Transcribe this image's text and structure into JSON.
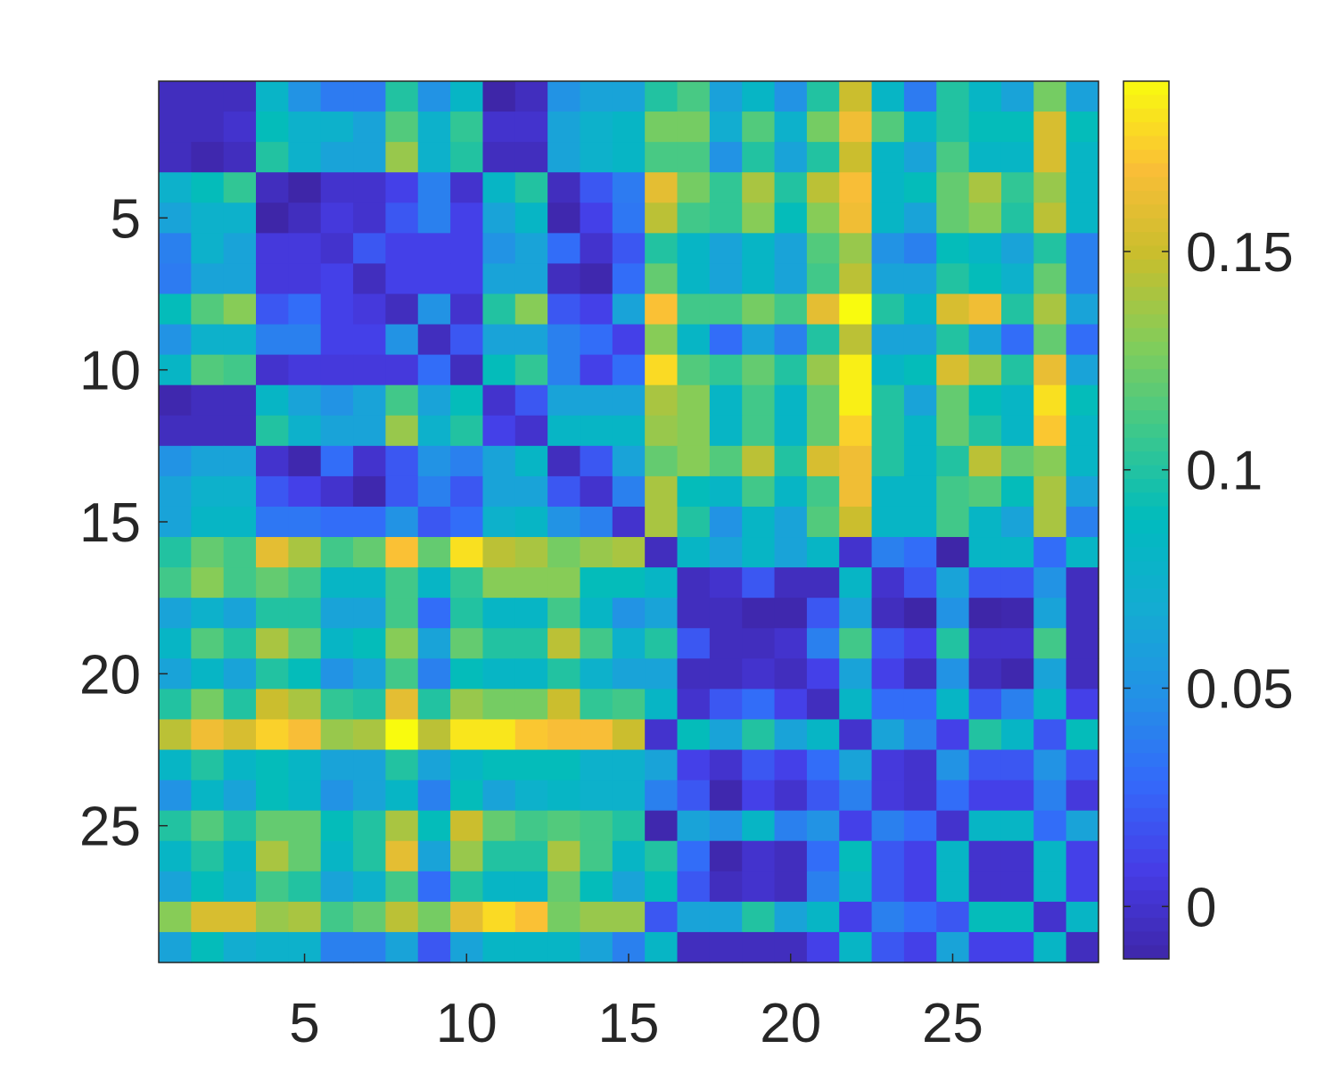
{
  "chart_data": {
    "type": "heatmap",
    "title": "",
    "xlabel": "",
    "ylabel": "",
    "rows": 29,
    "cols": 29,
    "x_ticks": [
      "5",
      "10",
      "15",
      "20",
      "25"
    ],
    "y_ticks": [
      "5",
      "10",
      "15",
      "20",
      "25"
    ],
    "colorbar": {
      "ticks": [
        "0",
        "0.05",
        "0.1",
        "0.15"
      ],
      "range": [
        -0.012,
        0.189
      ],
      "colormap": "parula"
    },
    "values": [
      [
        -0.005,
        -0.005,
        -0.005,
        0.079,
        0.05,
        0.037,
        0.037,
        0.1,
        0.05,
        0.081,
        -0.012,
        -0.005,
        0.05,
        0.062,
        0.062,
        0.1,
        0.112,
        0.06,
        0.081,
        0.05,
        0.1,
        0.15,
        0.081,
        0.037,
        0.1,
        0.081,
        0.062,
        0.125,
        0.06
      ],
      [
        -0.005,
        -0.005,
        0.0,
        0.09,
        0.075,
        0.075,
        0.062,
        0.115,
        0.075,
        0.105,
        0.0,
        0.0,
        0.062,
        0.075,
        0.081,
        0.125,
        0.125,
        0.07,
        0.115,
        0.075,
        0.125,
        0.165,
        0.115,
        0.081,
        0.1,
        0.09,
        0.09,
        0.155,
        0.09
      ],
      [
        -0.005,
        -0.01,
        -0.005,
        0.1,
        0.075,
        0.062,
        0.062,
        0.135,
        0.075,
        0.1,
        -0.005,
        -0.005,
        0.062,
        0.075,
        0.081,
        0.112,
        0.112,
        0.05,
        0.1,
        0.062,
        0.1,
        0.15,
        0.081,
        0.062,
        0.112,
        0.081,
        0.081,
        0.155,
        0.081
      ],
      [
        0.075,
        0.09,
        0.105,
        -0.005,
        -0.012,
        0.0,
        0.0,
        0.01,
        0.04,
        0.0,
        0.081,
        0.1,
        -0.005,
        0.02,
        0.037,
        0.16,
        0.125,
        0.105,
        0.14,
        0.1,
        0.145,
        0.168,
        0.081,
        0.09,
        0.12,
        0.14,
        0.105,
        0.135,
        0.081
      ],
      [
        0.062,
        0.075,
        0.075,
        -0.012,
        -0.005,
        0.005,
        0.0,
        0.02,
        0.04,
        0.01,
        0.062,
        0.081,
        -0.01,
        0.01,
        0.035,
        0.145,
        0.11,
        0.105,
        0.13,
        0.09,
        0.13,
        0.165,
        0.081,
        0.062,
        0.12,
        0.13,
        0.1,
        0.145,
        0.081
      ],
      [
        0.04,
        0.075,
        0.062,
        0.005,
        0.005,
        0.0,
        0.02,
        0.01,
        0.01,
        0.01,
        0.05,
        0.062,
        0.03,
        0.0,
        0.02,
        0.1,
        0.081,
        0.062,
        0.081,
        0.062,
        0.115,
        0.135,
        0.05,
        0.04,
        0.09,
        0.081,
        0.062,
        0.1,
        0.04
      ],
      [
        0.037,
        0.062,
        0.062,
        0.005,
        0.005,
        0.01,
        -0.005,
        0.01,
        0.01,
        0.01,
        0.062,
        0.062,
        -0.005,
        -0.01,
        0.03,
        0.12,
        0.081,
        0.062,
        0.081,
        0.062,
        0.11,
        0.145,
        0.062,
        0.062,
        0.1,
        0.09,
        0.075,
        0.12,
        0.04
      ],
      [
        0.09,
        0.115,
        0.13,
        0.02,
        0.03,
        0.01,
        0.005,
        -0.005,
        0.05,
        0.0,
        0.1,
        0.13,
        0.02,
        0.01,
        0.062,
        0.17,
        0.11,
        0.11,
        0.125,
        0.11,
        0.16,
        0.189,
        0.1,
        0.081,
        0.155,
        0.165,
        0.1,
        0.14,
        0.062
      ],
      [
        0.05,
        0.075,
        0.075,
        0.04,
        0.04,
        0.01,
        0.01,
        0.05,
        -0.005,
        0.02,
        0.062,
        0.062,
        0.04,
        0.03,
        0.01,
        0.13,
        0.081,
        0.03,
        0.062,
        0.04,
        0.1,
        0.145,
        0.062,
        0.062,
        0.1,
        0.062,
        0.03,
        0.12,
        0.03
      ],
      [
        0.081,
        0.115,
        0.11,
        0.0,
        0.005,
        0.005,
        0.005,
        0.005,
        0.03,
        -0.005,
        0.09,
        0.105,
        0.04,
        0.01,
        0.03,
        0.178,
        0.115,
        0.105,
        0.12,
        0.1,
        0.135,
        0.185,
        0.081,
        0.09,
        0.155,
        0.135,
        0.1,
        0.162,
        0.062
      ],
      [
        -0.01,
        -0.005,
        -0.005,
        0.081,
        0.062,
        0.05,
        0.062,
        0.11,
        0.062,
        0.09,
        0.0,
        0.02,
        0.062,
        0.062,
        0.062,
        0.14,
        0.13,
        0.081,
        0.11,
        0.081,
        0.12,
        0.185,
        0.1,
        0.062,
        0.12,
        0.09,
        0.081,
        0.18,
        0.09
      ],
      [
        -0.005,
        -0.005,
        -0.005,
        0.1,
        0.075,
        0.062,
        0.062,
        0.135,
        0.075,
        0.1,
        0.01,
        0.0,
        0.081,
        0.081,
        0.081,
        0.135,
        0.13,
        0.081,
        0.11,
        0.081,
        0.12,
        0.175,
        0.1,
        0.081,
        0.12,
        0.1,
        0.081,
        0.172,
        0.081
      ],
      [
        0.05,
        0.062,
        0.062,
        0.0,
        -0.01,
        0.03,
        0.0,
        0.02,
        0.05,
        0.04,
        0.062,
        0.081,
        -0.005,
        0.02,
        0.062,
        0.12,
        0.13,
        0.115,
        0.145,
        0.1,
        0.155,
        0.165,
        0.1,
        0.081,
        0.1,
        0.145,
        0.12,
        0.13,
        0.081
      ],
      [
        0.062,
        0.075,
        0.075,
        0.02,
        0.01,
        0.0,
        -0.01,
        0.02,
        0.04,
        0.02,
        0.062,
        0.062,
        0.02,
        0.0,
        0.04,
        0.14,
        0.09,
        0.081,
        0.11,
        0.081,
        0.11,
        0.165,
        0.081,
        0.081,
        0.11,
        0.115,
        0.09,
        0.14,
        0.062
      ],
      [
        0.062,
        0.081,
        0.081,
        0.035,
        0.035,
        0.03,
        0.03,
        0.05,
        0.02,
        0.03,
        0.075,
        0.081,
        0.05,
        0.04,
        0.0,
        0.14,
        0.1,
        0.05,
        0.081,
        0.062,
        0.115,
        0.15,
        0.081,
        0.081,
        0.11,
        0.081,
        0.062,
        0.14,
        0.04
      ],
      [
        0.1,
        0.12,
        0.11,
        0.16,
        0.14,
        0.11,
        0.12,
        0.17,
        0.12,
        0.18,
        0.145,
        0.14,
        0.125,
        0.135,
        0.14,
        -0.005,
        0.081,
        0.062,
        0.081,
        0.062,
        0.081,
        0.0,
        0.04,
        0.03,
        -0.012,
        0.081,
        0.081,
        0.03,
        0.081
      ],
      [
        0.11,
        0.13,
        0.11,
        0.12,
        0.11,
        0.081,
        0.081,
        0.11,
        0.081,
        0.105,
        0.13,
        0.13,
        0.13,
        0.09,
        0.09,
        0.081,
        -0.005,
        0.0,
        0.02,
        -0.005,
        -0.005,
        0.081,
        0.0,
        0.02,
        0.062,
        0.02,
        0.02,
        0.05,
        -0.005
      ],
      [
        0.062,
        0.075,
        0.062,
        0.1,
        0.1,
        0.062,
        0.062,
        0.11,
        0.03,
        0.1,
        0.081,
        0.081,
        0.11,
        0.081,
        0.05,
        0.062,
        -0.005,
        -0.005,
        -0.01,
        -0.01,
        0.02,
        0.062,
        -0.005,
        -0.012,
        0.05,
        -0.012,
        -0.01,
        0.062,
        -0.005
      ],
      [
        0.081,
        0.115,
        0.1,
        0.14,
        0.12,
        0.081,
        0.09,
        0.13,
        0.062,
        0.12,
        0.1,
        0.1,
        0.145,
        0.11,
        0.075,
        0.1,
        0.02,
        -0.005,
        -0.005,
        0.0,
        0.04,
        0.11,
        0.02,
        0.01,
        0.1,
        0.0,
        0.0,
        0.11,
        -0.005
      ],
      [
        0.062,
        0.081,
        0.062,
        0.1,
        0.09,
        0.05,
        0.062,
        0.11,
        0.04,
        0.09,
        0.081,
        0.081,
        0.1,
        0.075,
        0.062,
        0.062,
        -0.005,
        -0.005,
        0.0,
        -0.005,
        0.01,
        0.062,
        0.01,
        -0.005,
        0.05,
        -0.005,
        -0.01,
        0.062,
        -0.005
      ],
      [
        0.1,
        0.125,
        0.1,
        0.15,
        0.14,
        0.105,
        0.1,
        0.16,
        0.1,
        0.135,
        0.125,
        0.125,
        0.15,
        0.105,
        0.11,
        0.081,
        0.0,
        0.02,
        0.03,
        0.01,
        -0.005,
        0.081,
        0.03,
        0.03,
        0.081,
        0.02,
        0.04,
        0.081,
        0.01
      ],
      [
        0.145,
        0.165,
        0.155,
        0.175,
        0.168,
        0.135,
        0.14,
        0.189,
        0.145,
        0.182,
        0.182,
        0.172,
        0.168,
        0.168,
        0.15,
        0.0,
        0.09,
        0.062,
        0.1,
        0.062,
        0.081,
        0.0,
        0.062,
        0.04,
        0.01,
        0.1,
        0.081,
        0.02,
        0.09
      ],
      [
        0.081,
        0.1,
        0.081,
        0.09,
        0.081,
        0.062,
        0.062,
        0.1,
        0.062,
        0.081,
        0.09,
        0.09,
        0.09,
        0.075,
        0.075,
        0.062,
        0.01,
        0.0,
        0.02,
        0.01,
        0.03,
        0.062,
        0.005,
        0.0,
        0.05,
        0.02,
        0.02,
        0.05,
        0.02
      ],
      [
        0.05,
        0.081,
        0.062,
        0.09,
        0.081,
        0.05,
        0.062,
        0.081,
        0.04,
        0.09,
        0.062,
        0.075,
        0.081,
        0.075,
        0.075,
        0.04,
        0.02,
        -0.01,
        0.01,
        0.0,
        0.02,
        0.04,
        0.005,
        0.0,
        0.03,
        0.01,
        0.01,
        0.04,
        0.005
      ],
      [
        0.1,
        0.115,
        0.1,
        0.12,
        0.12,
        0.09,
        0.1,
        0.14,
        0.09,
        0.15,
        0.12,
        0.11,
        0.115,
        0.11,
        0.1,
        -0.01,
        0.062,
        0.05,
        0.081,
        0.04,
        0.05,
        0.01,
        0.04,
        0.03,
        0.0,
        0.081,
        0.081,
        0.03,
        0.062
      ],
      [
        0.081,
        0.1,
        0.081,
        0.14,
        0.12,
        0.081,
        0.1,
        0.16,
        0.062,
        0.135,
        0.1,
        0.1,
        0.14,
        0.11,
        0.081,
        0.1,
        0.03,
        -0.01,
        0.0,
        -0.005,
        0.03,
        0.09,
        0.02,
        0.01,
        0.081,
        0.0,
        0.0,
        0.081,
        0.01
      ],
      [
        0.062,
        0.09,
        0.075,
        0.11,
        0.1,
        0.062,
        0.075,
        0.11,
        0.03,
        0.1,
        0.081,
        0.081,
        0.12,
        0.09,
        0.062,
        0.09,
        0.02,
        -0.005,
        0.0,
        -0.005,
        0.04,
        0.081,
        0.02,
        0.01,
        0.081,
        0.0,
        0.0,
        0.081,
        0.01
      ],
      [
        0.13,
        0.155,
        0.155,
        0.135,
        0.14,
        0.11,
        0.12,
        0.145,
        0.125,
        0.16,
        0.178,
        0.17,
        0.125,
        0.135,
        0.135,
        0.02,
        0.062,
        0.062,
        0.1,
        0.062,
        0.081,
        0.01,
        0.04,
        0.03,
        0.02,
        0.09,
        0.09,
        0.0,
        0.081
      ],
      [
        0.062,
        0.09,
        0.07,
        0.075,
        0.075,
        0.04,
        0.04,
        0.062,
        0.02,
        0.062,
        0.081,
        0.081,
        0.081,
        0.062,
        0.04,
        0.081,
        -0.005,
        -0.005,
        -0.005,
        -0.005,
        0.01,
        0.081,
        0.02,
        0.01,
        0.062,
        0.01,
        0.01,
        0.081,
        -0.005
      ]
    ]
  }
}
